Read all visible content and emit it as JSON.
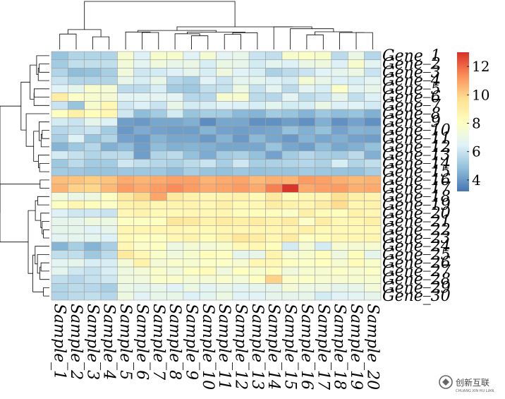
{
  "chart_data": {
    "type": "heatmap",
    "title": "",
    "samples": [
      "Sample_1",
      "Sample_2",
      "Sample_3",
      "Sample_4",
      "Sample_5",
      "Sample_6",
      "Sample_7",
      "Sample_8",
      "Sample_9",
      "Sample_10",
      "Sample_11",
      "Sample_12",
      "Sample_13",
      "Sample_14",
      "Sample_15",
      "Sample_16",
      "Sample_17",
      "Sample_18",
      "Sample_19",
      "Sample_20"
    ],
    "rows": [
      {
        "label": "Gene_1",
        "values": [
          5.0,
          5.5,
          5.5,
          5.5,
          7.6,
          6.4,
          7.7,
          7.7,
          6.5,
          7.5,
          6.6,
          6.9,
          6.0,
          5.8,
          7.7,
          7.9,
          7.7,
          5.7,
          7.0,
          5.6
        ]
      },
      {
        "label": "Gene_2",
        "values": [
          5.2,
          5.8,
          5.8,
          5.8,
          7.4,
          6.6,
          7.3,
          6.9,
          7.0,
          6.3,
          7.0,
          6.9,
          6.2,
          6.7,
          6.4,
          7.0,
          7.2,
          6.4,
          7.7,
          6.6
        ]
      },
      {
        "label": "Gene_3",
        "values": [
          5.5,
          4.8,
          4.9,
          5.3,
          7.3,
          6.1,
          6.2,
          6.4,
          6.8,
          6.3,
          7.2,
          6.5,
          6.3,
          5.4,
          5.7,
          6.0,
          6.5,
          6.7,
          7.1,
          6.0
        ]
      },
      {
        "label": "Gene_4",
        "values": [
          6.0,
          5.5,
          5.5,
          5.5,
          6.9,
          6.3,
          6.9,
          5.6,
          5.3,
          6.5,
          6.0,
          6.7,
          6.7,
          6.4,
          6.2,
          7.5,
          6.9,
          6.4,
          6.3,
          6.6
        ]
      },
      {
        "label": "Gene_5",
        "values": [
          6.5,
          6.8,
          7.7,
          7.5,
          5.7,
          5.7,
          6.3,
          5.2,
          5.1,
          5.8,
          5.9,
          7.1,
          5.9,
          6.6,
          5.7,
          6.6,
          6.3,
          7.9,
          6.6,
          6.9
        ]
      },
      {
        "label": "Gene_6",
        "values": [
          9.0,
          7.9,
          7.6,
          7.5,
          6.6,
          6.6,
          6.6,
          6.6,
          5.6,
          5.6,
          7.6,
          7.6,
          5.7,
          5.6,
          6.6,
          5.7,
          6.0,
          6.8,
          5.8,
          6.4
        ]
      },
      {
        "label": "Gene_7",
        "values": [
          6.0,
          5.0,
          7.7,
          8.5,
          6.1,
          6.4,
          6.0,
          6.9,
          6.2,
          6.3,
          6.5,
          6.4,
          6.3,
          6.7,
          6.2,
          6.3,
          7.0,
          6.4,
          6.5,
          6.2
        ]
      },
      {
        "label": "Gene_8",
        "values": [
          8.0,
          8.9,
          8.2,
          8.5,
          6.1,
          4.8,
          5.2,
          6.2,
          5.0,
          5.3,
          5.2,
          4.7,
          4.6,
          5.2,
          5.0,
          4.6,
          5.1,
          4.8,
          5.0,
          4.5
        ]
      },
      {
        "label": "Gene_9",
        "values": [
          6.2,
          6.0,
          6.8,
          6.4,
          4.1,
          4.0,
          4.3,
          4.3,
          4.5,
          3.7,
          4.3,
          4.3,
          3.8,
          3.8,
          4.1,
          3.8,
          4.5,
          3.8,
          4.2,
          3.8
        ]
      },
      {
        "label": "Gene_10",
        "values": [
          5.6,
          5.8,
          6.0,
          5.2,
          4.0,
          4.4,
          4.2,
          4.1,
          4.1,
          4.6,
          4.2,
          4.1,
          4.2,
          4.3,
          4.9,
          4.5,
          4.9,
          4.2,
          4.6,
          4.5
        ]
      },
      {
        "label": "Gene_11",
        "values": [
          5.3,
          6.4,
          5.0,
          5.5,
          4.2,
          4.0,
          4.6,
          4.3,
          4.3,
          4.0,
          4.6,
          4.0,
          4.7,
          4.3,
          4.0,
          4.6,
          4.3,
          4.5,
          4.2,
          4.1
        ]
      },
      {
        "label": "Gene_12",
        "values": [
          4.6,
          5.1,
          5.6,
          4.5,
          4.8,
          4.1,
          4.8,
          4.5,
          4.6,
          4.5,
          4.3,
          4.3,
          4.3,
          5.0,
          4.3,
          4.1,
          4.8,
          4.3,
          4.5,
          4.9
        ]
      },
      {
        "label": "Gene_13",
        "values": [
          6.2,
          5.9,
          5.5,
          5.7,
          5.7,
          4.1,
          5.5,
          5.7,
          4.9,
          4.4,
          5.2,
          5.4,
          4.9,
          4.2,
          5.2,
          5.6,
          5.3,
          5.2,
          5.7,
          4.5
        ]
      },
      {
        "label": "Gene_14",
        "values": [
          5.1,
          5.7,
          5.2,
          5.2,
          6.1,
          5.8,
          5.6,
          5.4,
          5.7,
          6.0,
          5.3,
          6.1,
          5.3,
          5.4,
          5.5,
          5.6,
          5.4,
          6.3,
          5.5,
          5.8
        ]
      },
      {
        "label": "Gene_15",
        "values": [
          5.2,
          5.1,
          5.0,
          5.0,
          5.1,
          5.1,
          5.1,
          4.8,
          5.3,
          5.0,
          4.9,
          5.1,
          4.9,
          5.0,
          5.0,
          5.2,
          5.1,
          5.0,
          4.9,
          5.3
        ]
      },
      {
        "label": "Gene_16",
        "values": [
          10.4,
          10.3,
          10.1,
          10.3,
          10.8,
          10.6,
          10.8,
          11.0,
          11.0,
          10.6,
          10.8,
          10.9,
          10.5,
          10.7,
          10.6,
          11.1,
          11.0,
          10.7,
          10.5,
          10.6
        ]
      },
      {
        "label": "Gene_17",
        "values": [
          10.6,
          10.0,
          9.9,
          10.5,
          11.1,
          10.8,
          11.1,
          11.4,
          11.1,
          10.8,
          10.9,
          11.1,
          10.8,
          11.6,
          12.9,
          10.8,
          11.0,
          11.1,
          10.7,
          10.8
        ]
      },
      {
        "label": "Gene_18",
        "values": [
          7.4,
          7.0,
          7.2,
          8.0,
          9.2,
          9.9,
          10.9,
          9.2,
          8.8,
          8.5,
          8.7,
          8.8,
          8.4,
          9.2,
          8.3,
          8.6,
          8.6,
          9.7,
          8.9,
          8.7
        ]
      },
      {
        "label": "Gene_19",
        "values": [
          8.0,
          8.6,
          8.2,
          7.9,
          8.8,
          8.9,
          8.6,
          8.7,
          8.7,
          8.5,
          8.9,
          8.4,
          8.5,
          9.0,
          8.8,
          8.6,
          9.0,
          9.8,
          8.6,
          8.8
        ]
      },
      {
        "label": "Gene_20",
        "values": [
          6.4,
          6.1,
          6.1,
          6.0,
          8.5,
          8.7,
          8.4,
          8.4,
          8.5,
          8.5,
          8.6,
          8.2,
          8.2,
          8.2,
          7.9,
          8.9,
          8.3,
          8.1,
          8.8,
          8.5
        ]
      },
      {
        "label": "Gene_21",
        "values": [
          6.8,
          6.8,
          7.2,
          7.1,
          8.0,
          8.0,
          8.1,
          9.4,
          9.2,
          8.8,
          9.1,
          8.9,
          9.1,
          8.8,
          9.1,
          7.9,
          9.0,
          8.5,
          8.6,
          8.9
        ]
      },
      {
        "label": "Gene_22",
        "values": [
          6.8,
          6.8,
          6.5,
          6.8,
          8.6,
          8.6,
          8.6,
          8.6,
          8.4,
          8.4,
          8.6,
          8.6,
          8.6,
          8.6,
          8.6,
          8.9,
          8.4,
          8.4,
          8.4,
          8.4
        ]
      },
      {
        "label": "Gene_23",
        "values": [
          6.6,
          6.7,
          6.7,
          6.4,
          8.4,
          8.1,
          8.0,
          8.5,
          8.7,
          8.3,
          8.7,
          9.4,
          9.0,
          8.5,
          9.1,
          8.0,
          8.3,
          8.5,
          8.5,
          8.6
        ]
      },
      {
        "label": "Gene_24",
        "values": [
          4.6,
          5.3,
          4.6,
          5.3,
          8.5,
          7.8,
          8.0,
          7.1,
          7.5,
          7.4,
          7.7,
          8.4,
          8.5,
          8.2,
          6.2,
          7.5,
          6.2,
          7.6,
          7.5,
          7.6
        ]
      },
      {
        "label": "Gene_25",
        "values": [
          5.8,
          5.8,
          5.1,
          5.7,
          9.2,
          8.5,
          7.8,
          7.3,
          7.7,
          8.2,
          8.0,
          6.8,
          6.9,
          8.7,
          7.6,
          7.7,
          8.2,
          7.2,
          8.2,
          6.8
        ]
      },
      {
        "label": "Gene_26",
        "values": [
          6.6,
          6.8,
          6.3,
          6.3,
          7.5,
          8.8,
          7.5,
          7.8,
          7.6,
          7.9,
          7.9,
          7.6,
          8.5,
          8.5,
          8.0,
          7.9,
          8.1,
          7.6,
          8.3,
          7.8
        ]
      },
      {
        "label": "Gene_27",
        "values": [
          6.7,
          6.1,
          5.9,
          6.3,
          7.2,
          7.5,
          7.8,
          7.3,
          8.0,
          8.3,
          7.3,
          8.1,
          7.7,
          8.2,
          7.3,
          7.6,
          7.6,
          7.9,
          7.6,
          7.9
        ]
      },
      {
        "label": "Gene_28",
        "values": [
          5.8,
          5.6,
          5.9,
          6.1,
          7.3,
          7.3,
          7.8,
          7.8,
          7.5,
          7.5,
          7.8,
          7.4,
          8.0,
          10.0,
          7.8,
          7.9,
          7.6,
          7.6,
          7.7,
          7.6
        ]
      },
      {
        "label": "Gene_29",
        "values": [
          5.5,
          5.7,
          5.6,
          5.3,
          7.0,
          6.8,
          6.9,
          6.5,
          7.1,
          6.6,
          6.9,
          6.6,
          6.8,
          6.8,
          7.5,
          7.1,
          7.1,
          6.8,
          6.9,
          7.4
        ]
      },
      {
        "label": "Gene_30",
        "values": [
          5.5,
          5.7,
          5.8,
          5.6,
          7.2,
          6.5,
          6.9,
          6.9,
          6.4,
          6.7,
          7.1,
          6.5,
          6.5,
          6.8,
          6.8,
          6.9,
          6.2,
          6.5,
          6.6,
          6.8
        ]
      }
    ],
    "colorscale": {
      "min": 3.2,
      "max": 13.0,
      "ticks": [
        4,
        6,
        8,
        10,
        12
      ],
      "tick_labels": [
        "4",
        "6",
        "8",
        "10",
        "12"
      ],
      "stops": [
        "#4575B4",
        "#91BFDB",
        "#E0F3F8",
        "#FFFFBF",
        "#FEE090",
        "#FC8D59",
        "#D73027"
      ]
    },
    "cell_border_color": "#A0A0A0",
    "row_dendrogram": "left",
    "column_dendrogram": "top",
    "legend_position": "right"
  },
  "watermark": {
    "text": "创新互联",
    "subtext": "CHUANG XIN HU LIAN"
  }
}
